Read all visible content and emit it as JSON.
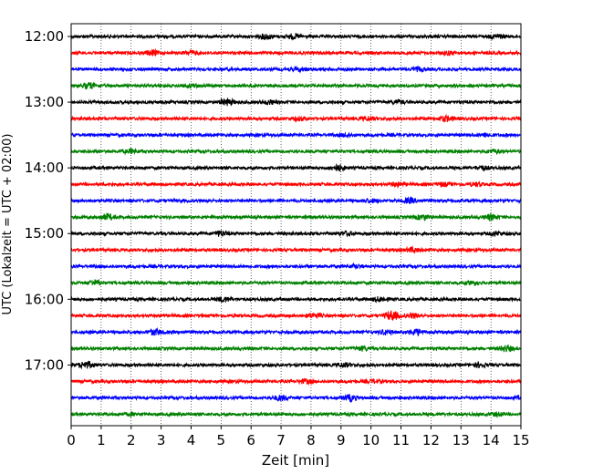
{
  "chart_data": {
    "type": "line",
    "title": "",
    "xlabel": "Zeit  [min]",
    "ylabel": "UTC (Lokalzeit = UTC + 02:00)",
    "xlim": [
      0,
      15
    ],
    "x_ticks": [
      "0",
      "1",
      "2",
      "3",
      "4",
      "5",
      "6",
      "7",
      "8",
      "9",
      "10",
      "11",
      "12",
      "13",
      "14",
      "15"
    ],
    "y_ticks": [
      "12:00",
      "13:00",
      "14:00",
      "15:00",
      "16:00",
      "17:00"
    ],
    "grid": "vertical dotted lines at each minute",
    "colors": [
      "#000000",
      "#ff0000",
      "#0000ff",
      "#008000"
    ],
    "traces": [
      {
        "start": "12:00",
        "color": "#000000",
        "events": [
          {
            "t": 6.5,
            "a": 2.6
          },
          {
            "t": 7.4,
            "a": 2.2
          },
          {
            "t": 14.2,
            "a": 2.0
          }
        ]
      },
      {
        "start": "12:15",
        "color": "#ff0000",
        "events": [
          {
            "t": 2.7,
            "a": 2.4
          },
          {
            "t": 4.0,
            "a": 1.8
          },
          {
            "t": 12.6,
            "a": 1.6
          }
        ]
      },
      {
        "start": "12:30",
        "color": "#0000ff",
        "events": [
          {
            "t": 7.6,
            "a": 1.6
          },
          {
            "t": 11.6,
            "a": 1.8
          }
        ]
      },
      {
        "start": "12:45",
        "color": "#008000",
        "events": [
          {
            "t": 0.6,
            "a": 2.8
          },
          {
            "t": 4.0,
            "a": 1.6
          }
        ]
      },
      {
        "start": "13:00",
        "color": "#000000",
        "events": [
          {
            "t": 5.2,
            "a": 3.2
          },
          {
            "t": 6.6,
            "a": 2.0
          },
          {
            "t": 10.9,
            "a": 1.8
          }
        ]
      },
      {
        "start": "13:15",
        "color": "#ff0000",
        "events": [
          {
            "t": 7.6,
            "a": 1.6
          },
          {
            "t": 9.9,
            "a": 1.8
          },
          {
            "t": 12.5,
            "a": 2.6
          }
        ]
      },
      {
        "start": "13:30",
        "color": "#0000ff",
        "events": [
          {
            "t": 9.2,
            "a": 1.4
          },
          {
            "t": 13.8,
            "a": 1.6
          }
        ]
      },
      {
        "start": "13:45",
        "color": "#008000",
        "events": [
          {
            "t": 2.0,
            "a": 2.0
          },
          {
            "t": 14.1,
            "a": 1.6
          }
        ]
      },
      {
        "start": "14:00",
        "color": "#000000",
        "events": [
          {
            "t": 8.9,
            "a": 3.0
          },
          {
            "t": 13.7,
            "a": 1.8
          }
        ]
      },
      {
        "start": "14:15",
        "color": "#ff0000",
        "events": [
          {
            "t": 10.9,
            "a": 1.8
          },
          {
            "t": 12.4,
            "a": 1.8
          },
          {
            "t": 13.5,
            "a": 1.6
          }
        ]
      },
      {
        "start": "14:30",
        "color": "#0000ff",
        "events": [
          {
            "t": 10.0,
            "a": 1.6
          },
          {
            "t": 11.3,
            "a": 2.4
          }
        ]
      },
      {
        "start": "14:45",
        "color": "#008000",
        "events": [
          {
            "t": 1.2,
            "a": 3.0
          },
          {
            "t": 11.7,
            "a": 2.4
          },
          {
            "t": 14.0,
            "a": 2.6
          }
        ]
      },
      {
        "start": "15:00",
        "color": "#000000",
        "events": [
          {
            "t": 5.0,
            "a": 2.6
          },
          {
            "t": 9.2,
            "a": 1.8
          },
          {
            "t": 14.2,
            "a": 1.8
          }
        ]
      },
      {
        "start": "15:15",
        "color": "#ff0000",
        "events": [
          {
            "t": 11.4,
            "a": 2.4
          }
        ]
      },
      {
        "start": "15:30",
        "color": "#0000ff",
        "events": [
          {
            "t": 9.5,
            "a": 1.4
          }
        ]
      },
      {
        "start": "15:45",
        "color": "#008000",
        "events": [
          {
            "t": 0.8,
            "a": 2.4
          },
          {
            "t": 13.4,
            "a": 1.6
          }
        ]
      },
      {
        "start": "16:00",
        "color": "#000000",
        "events": [
          {
            "t": 5.1,
            "a": 2.4
          },
          {
            "t": 10.3,
            "a": 2.2
          }
        ]
      },
      {
        "start": "16:15",
        "color": "#ff0000",
        "events": [
          {
            "t": 8.1,
            "a": 2.4
          },
          {
            "t": 10.7,
            "a": 5.0
          },
          {
            "t": 11.4,
            "a": 2.0
          }
        ]
      },
      {
        "start": "16:30",
        "color": "#0000ff",
        "events": [
          {
            "t": 2.8,
            "a": 3.0
          },
          {
            "t": 10.5,
            "a": 2.2
          },
          {
            "t": 11.5,
            "a": 3.0
          }
        ]
      },
      {
        "start": "16:45",
        "color": "#008000",
        "events": [
          {
            "t": 9.7,
            "a": 2.0
          },
          {
            "t": 14.5,
            "a": 3.0
          }
        ]
      },
      {
        "start": "17:00",
        "color": "#000000",
        "events": [
          {
            "t": 0.5,
            "a": 3.6
          },
          {
            "t": 9.1,
            "a": 2.0
          },
          {
            "t": 13.6,
            "a": 2.0
          }
        ]
      },
      {
        "start": "17:15",
        "color": "#ff0000",
        "events": [
          {
            "t": 7.8,
            "a": 2.0
          },
          {
            "t": 10.1,
            "a": 1.6
          }
        ]
      },
      {
        "start": "17:30",
        "color": "#0000ff",
        "events": [
          {
            "t": 7.0,
            "a": 2.6
          },
          {
            "t": 9.3,
            "a": 3.0
          },
          {
            "t": 15.0,
            "a": 1.6
          }
        ]
      },
      {
        "start": "17:45",
        "color": "#008000",
        "events": [
          {
            "t": 2.0,
            "a": 1.4
          },
          {
            "t": 14.2,
            "a": 1.6
          }
        ]
      }
    ]
  }
}
